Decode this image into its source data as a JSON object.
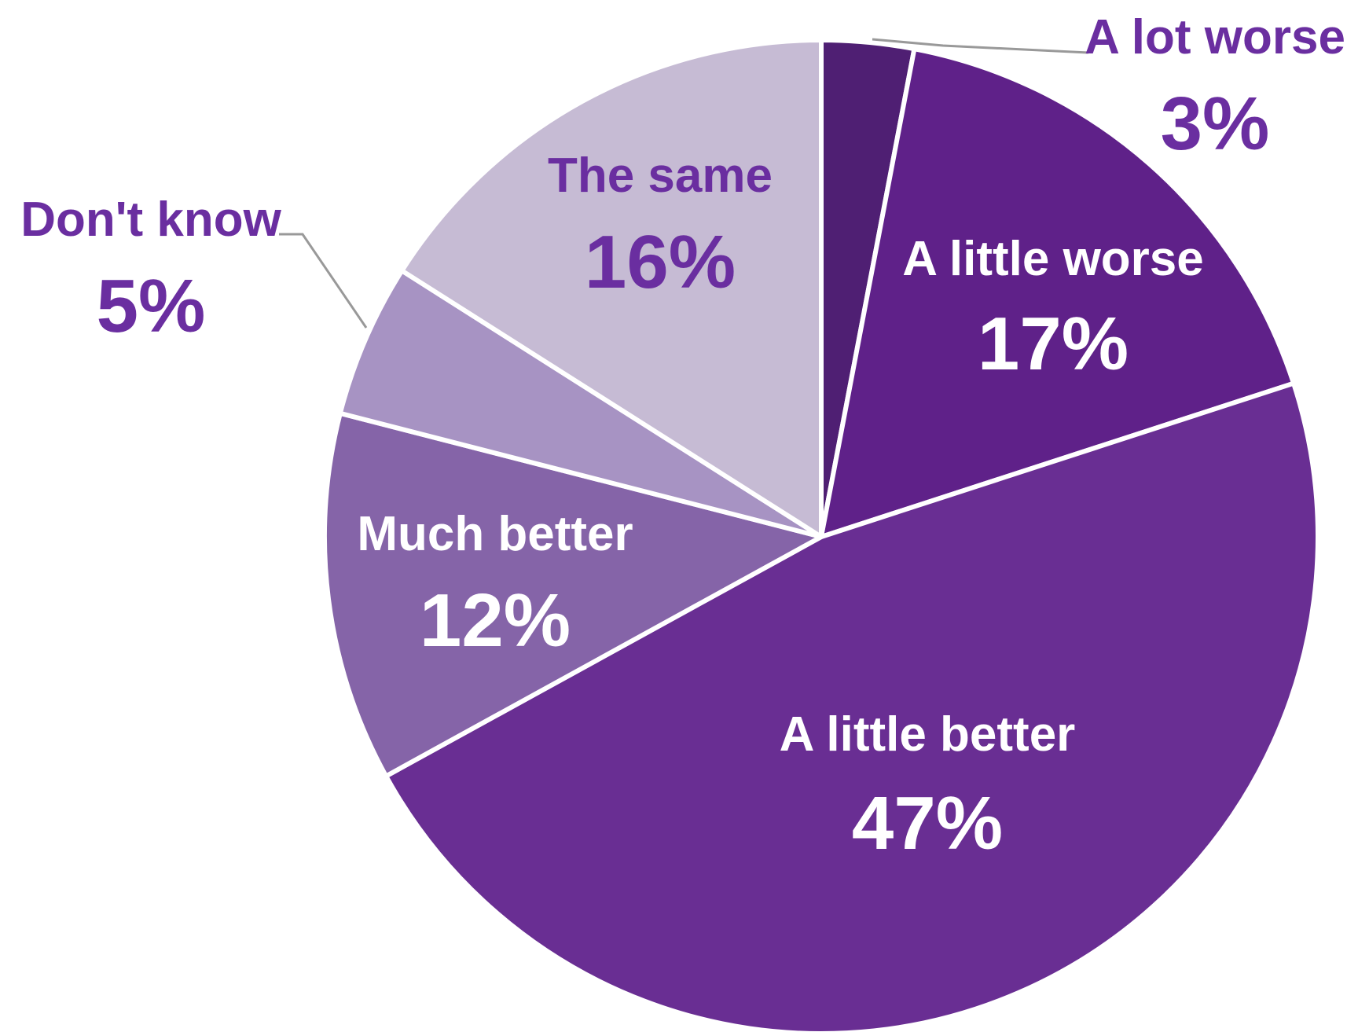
{
  "chart_data": {
    "type": "pie",
    "title": "",
    "start_angle_deg": 0,
    "direction": "clockwise",
    "slices": [
      {
        "label": "A lot worse",
        "value": 3,
        "value_label": "3%",
        "color": "#4f1f73",
        "label_color": "#6a2ea0",
        "label_placement": "outside"
      },
      {
        "label": "A little worse",
        "value": 17,
        "value_label": "17%",
        "color": "#5f2189",
        "label_color": "#ffffff",
        "label_placement": "inside"
      },
      {
        "label": "A little better",
        "value": 47,
        "value_label": "47%",
        "color": "#692e93",
        "label_color": "#ffffff",
        "label_placement": "inside"
      },
      {
        "label": "Much better",
        "value": 12,
        "value_label": "12%",
        "color": "#8564a8",
        "label_color": "#ffffff",
        "label_placement": "inside"
      },
      {
        "label": "Don't know",
        "value": 5,
        "value_label": "5%",
        "color": "#a793c3",
        "label_color": "#6a2ea0",
        "label_placement": "outside"
      },
      {
        "label": "The same",
        "value": 16,
        "value_label": "16%",
        "color": "#c6bbd4",
        "label_color": "#6a2ea0",
        "label_placement": "inside"
      }
    ],
    "legend": "none",
    "leader_line_color": "#999999"
  }
}
